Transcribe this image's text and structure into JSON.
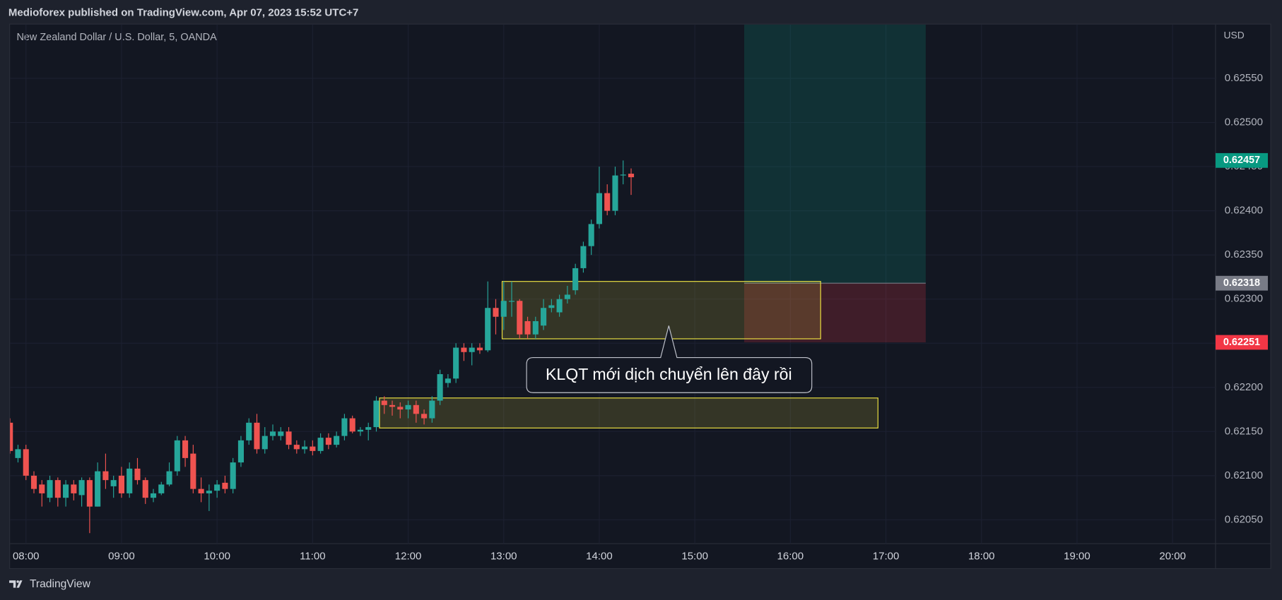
{
  "header": {
    "publisher": "Medioforex published on TradingView.com, Apr 07, 2023 15:52 UTC+7",
    "footer": "TradingView"
  },
  "chart_data": {
    "type": "candlestick",
    "title": "New Zealand Dollar / U.S. Dollar, 5, OANDA",
    "y_axis_label": "USD",
    "up_color": "#26a69a",
    "down_color": "#ef5350",
    "x": [
      "07:50",
      "07:55",
      "08:00",
      "08:05",
      "08:10",
      "08:15",
      "08:20",
      "08:25",
      "08:30",
      "08:35",
      "08:40",
      "08:45",
      "08:50",
      "08:55",
      "09:00",
      "09:05",
      "09:10",
      "09:15",
      "09:20",
      "09:25",
      "09:30",
      "09:35",
      "09:40",
      "09:45",
      "09:50",
      "09:55",
      "10:00",
      "10:05",
      "10:10",
      "10:15",
      "10:20",
      "10:25",
      "10:30",
      "10:35",
      "10:40",
      "10:45",
      "10:50",
      "10:55",
      "11:00",
      "11:05",
      "11:10",
      "11:15",
      "11:20",
      "11:25",
      "11:30",
      "11:35",
      "11:40",
      "11:45",
      "11:50",
      "11:55",
      "12:00",
      "12:05",
      "12:10",
      "12:15",
      "12:20",
      "12:25",
      "12:30",
      "12:35",
      "12:40",
      "12:45",
      "12:50",
      "12:55",
      "13:00",
      "13:05",
      "13:10",
      "13:15",
      "13:20",
      "13:25",
      "13:30",
      "13:35",
      "13:40",
      "13:45",
      "13:50",
      "13:55",
      "14:00",
      "14:05",
      "14:10",
      "14:15",
      "14:20"
    ],
    "open": [
      0.6216,
      0.6212,
      0.6213,
      0.621,
      0.6209,
      0.62075,
      0.62095,
      0.62075,
      0.6209,
      0.62078,
      0.62095,
      0.62065,
      0.62105,
      0.62088,
      0.621,
      0.6208,
      0.62108,
      0.62095,
      0.62075,
      0.6208,
      0.6209,
      0.62105,
      0.6214,
      0.62125,
      0.62085,
      0.6208,
      0.62083,
      0.62092,
      0.62085,
      0.62115,
      0.6214,
      0.6216,
      0.6213,
      0.62145,
      0.62145,
      0.6215,
      0.62135,
      0.6213,
      0.62133,
      0.62128,
      0.62143,
      0.62135,
      0.62145,
      0.62165,
      0.6215,
      0.62152,
      0.62155,
      0.62185,
      0.6218,
      0.62178,
      0.62175,
      0.6218,
      0.6217,
      0.62165,
      0.62185,
      0.62205,
      0.6221,
      0.62245,
      0.6224,
      0.62245,
      0.62242,
      0.6229,
      0.6228,
      0.62297,
      0.62298,
      0.62275,
      0.6226,
      0.6227,
      0.6229,
      0.62285,
      0.623,
      0.6231,
      0.62335,
      0.6236,
      0.62385,
      0.6242,
      0.624,
      0.6244,
      0.62442
    ],
    "high": [
      0.62165,
      0.62135,
      0.62135,
      0.62105,
      0.62095,
      0.621,
      0.62098,
      0.62095,
      0.62095,
      0.62098,
      0.62098,
      0.62115,
      0.62125,
      0.621,
      0.6211,
      0.62115,
      0.6212,
      0.62098,
      0.62085,
      0.62093,
      0.62115,
      0.62145,
      0.62145,
      0.62135,
      0.62098,
      0.6209,
      0.62095,
      0.621,
      0.6212,
      0.62145,
      0.62165,
      0.6217,
      0.62155,
      0.62158,
      0.62155,
      0.62155,
      0.6214,
      0.6214,
      0.6214,
      0.62148,
      0.62148,
      0.6215,
      0.6217,
      0.62168,
      0.62155,
      0.6216,
      0.6219,
      0.6219,
      0.62185,
      0.62183,
      0.62185,
      0.62185,
      0.62175,
      0.6219,
      0.6222,
      0.62215,
      0.6225,
      0.6225,
      0.6225,
      0.6225,
      0.6232,
      0.623,
      0.6232,
      0.6232,
      0.623,
      0.6228,
      0.6228,
      0.623,
      0.623,
      0.62305,
      0.62315,
      0.6234,
      0.62365,
      0.6239,
      0.6245,
      0.6243,
      0.6245,
      0.62457,
      0.62448
    ],
    "low": [
      0.62125,
      0.62115,
      0.62095,
      0.6208,
      0.62065,
      0.6207,
      0.62065,
      0.62065,
      0.62072,
      0.62065,
      0.62035,
      0.62065,
      0.62085,
      0.62075,
      0.62075,
      0.62075,
      0.6209,
      0.62068,
      0.6207,
      0.62078,
      0.62088,
      0.621,
      0.6211,
      0.6208,
      0.6207,
      0.6206,
      0.62075,
      0.6208,
      0.6208,
      0.6211,
      0.62135,
      0.62125,
      0.62125,
      0.6214,
      0.6214,
      0.6213,
      0.62125,
      0.62125,
      0.62123,
      0.62125,
      0.6213,
      0.62132,
      0.6214,
      0.62148,
      0.62145,
      0.6214,
      0.6215,
      0.6217,
      0.62168,
      0.62165,
      0.62165,
      0.6216,
      0.62158,
      0.6216,
      0.6218,
      0.622,
      0.62205,
      0.6223,
      0.62225,
      0.62238,
      0.6224,
      0.6226,
      0.62265,
      0.6228,
      0.62255,
      0.62255,
      0.62255,
      0.62265,
      0.62285,
      0.6228,
      0.62295,
      0.62305,
      0.6233,
      0.6235,
      0.6238,
      0.62395,
      0.62395,
      0.6243,
      0.62418
    ],
    "close": [
      0.62128,
      0.6213,
      0.621,
      0.62085,
      0.6208,
      0.62095,
      0.62075,
      0.6209,
      0.6208,
      0.62095,
      0.62065,
      0.62105,
      0.62095,
      0.62095,
      0.6208,
      0.62108,
      0.62095,
      0.62075,
      0.6208,
      0.6209,
      0.62105,
      0.6214,
      0.6212,
      0.62085,
      0.6208,
      0.62083,
      0.6209,
      0.62085,
      0.62115,
      0.6214,
      0.6216,
      0.6213,
      0.62145,
      0.6215,
      0.6215,
      0.62135,
      0.6213,
      0.62133,
      0.62128,
      0.62143,
      0.62135,
      0.62145,
      0.62165,
      0.6215,
      0.62152,
      0.62155,
      0.62185,
      0.6218,
      0.62178,
      0.62175,
      0.6218,
      0.6217,
      0.62165,
      0.62185,
      0.62215,
      0.6221,
      0.62245,
      0.6224,
      0.62245,
      0.62242,
      0.6229,
      0.6228,
      0.62298,
      0.62298,
      0.6226,
      0.6226,
      0.62275,
      0.6229,
      0.62293,
      0.623,
      0.62305,
      0.62335,
      0.6236,
      0.62385,
      0.6242,
      0.624,
      0.6244,
      0.62441,
      0.62438
    ],
    "xlim": [
      "07:50",
      "20:27"
    ],
    "xticks": [
      "08:00",
      "09:00",
      "10:00",
      "11:00",
      "12:00",
      "13:00",
      "14:00",
      "15:00",
      "16:00",
      "17:00",
      "18:00",
      "19:00",
      "20:00"
    ],
    "ylim": [
      0.62023,
      0.62611
    ],
    "yticks": [
      {
        "value": 0.6205,
        "label": "0.62050"
      },
      {
        "value": 0.621,
        "label": "0.62100"
      },
      {
        "value": 0.6215,
        "label": "0.62150"
      },
      {
        "value": 0.622,
        "label": "0.62200"
      },
      {
        "value": 0.6225,
        "label": "0.62250"
      },
      {
        "value": 0.623,
        "label": "0.62300"
      },
      {
        "value": 0.6235,
        "label": "0.62350"
      },
      {
        "value": 0.624,
        "label": "0.62400"
      },
      {
        "value": 0.6245,
        "label": "0.62450"
      },
      {
        "value": 0.625,
        "label": "0.62500"
      },
      {
        "value": 0.6255,
        "label": "0.62550"
      }
    ],
    "zones": [
      {
        "x": [
          "12:59",
          "16:19"
        ],
        "top": 0.6232,
        "bottom": 0.62255,
        "color": "#f0e442"
      },
      {
        "x": [
          "11:42",
          "16:55"
        ],
        "top": 0.62188,
        "bottom": 0.62154,
        "color": "#f0e442"
      }
    ],
    "position": {
      "x": [
        "15:31",
        "17:25"
      ],
      "target": 0.62611,
      "entry": 0.62318,
      "stop": 0.62251
    },
    "price_labels": [
      {
        "value": 0.62457,
        "color": "#089981"
      },
      {
        "value": 0.62318,
        "color": "#787b86"
      },
      {
        "value": 0.62251,
        "color": "#f23645"
      }
    ],
    "annotation": "KLQT mới dịch chuyển lên đây rồi"
  }
}
